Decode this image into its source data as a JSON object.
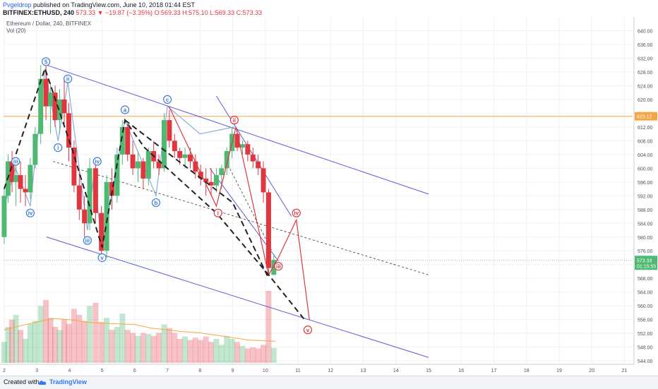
{
  "header": {
    "author": "Pvgeldrop",
    "published": "published on TradingView.com, June 10, 2018 01:44 EST",
    "symbol": "BITFINEX:ETHUSD, 240",
    "change": "573.33 ▼ −19.87 (−3.35%)",
    "ohlc": "O:569.33 H:575.10 L:569.33 C:573.33"
  },
  "legend": {
    "title": "Ethereum / Dollar, 240, BITFINEX",
    "volume": "Vol (20)"
  },
  "footer": {
    "created": "Created with",
    "brand": "TradingView"
  },
  "colors": {
    "up": "#4fb873",
    "down": "#e0363f",
    "channel": "#5b5bd6",
    "wave_blue": "#8aaee0",
    "wave_red": "#e0363f",
    "price_line": "#f7a543"
  },
  "chart_data": {
    "type": "candlestick",
    "ylim": [
      543,
      644
    ],
    "xlim": [
      1.98,
      21.25
    ],
    "y_ticks": [
      544,
      548,
      552,
      556,
      560,
      564,
      568,
      572,
      576,
      580,
      584,
      588,
      592,
      596,
      600,
      604,
      608,
      612,
      616,
      620,
      624,
      628,
      632,
      636,
      640
    ],
    "x_ticks": [
      2,
      3,
      4,
      5,
      6,
      7,
      8,
      9,
      10,
      11,
      12,
      13,
      14,
      15,
      16,
      17,
      18,
      19,
      20,
      21
    ],
    "price_label": "615.12",
    "last_price": "573.33",
    "countdown": "01:15:55",
    "candles": [
      [
        2.0,
        580,
        594,
        578,
        592
      ],
      [
        2.12,
        592,
        604,
        590,
        602
      ],
      [
        2.24,
        602,
        605,
        593,
        596
      ],
      [
        2.36,
        596,
        601,
        589,
        598
      ],
      [
        2.5,
        598,
        602,
        590,
        594
      ],
      [
        2.65,
        594,
        598,
        589,
        593
      ],
      [
        2.8,
        593,
        603,
        591,
        601
      ],
      [
        2.95,
        601,
        612,
        600,
        610
      ],
      [
        3.12,
        610,
        630,
        607,
        626
      ],
      [
        3.28,
        626,
        630,
        614,
        618
      ],
      [
        3.42,
        618,
        625,
        610,
        622
      ],
      [
        3.56,
        622,
        624,
        612,
        614
      ],
      [
        3.7,
        614,
        623,
        610,
        620
      ],
      [
        3.84,
        620,
        626,
        612,
        616
      ],
      [
        3.98,
        616,
        619,
        602,
        606
      ],
      [
        4.14,
        606,
        608,
        593,
        595
      ],
      [
        4.3,
        595,
        599,
        585,
        588
      ],
      [
        4.46,
        588,
        592,
        580,
        584
      ],
      [
        4.62,
        584,
        603,
        582,
        600
      ],
      [
        4.8,
        600,
        602,
        584,
        587
      ],
      [
        4.98,
        587,
        589,
        574,
        576
      ],
      [
        5.14,
        576,
        598,
        574,
        596
      ],
      [
        5.3,
        596,
        600,
        588,
        592
      ],
      [
        5.46,
        592,
        606,
        590,
        604
      ],
      [
        5.62,
        604,
        614,
        601,
        612
      ],
      [
        5.78,
        612,
        613,
        602,
        604
      ],
      [
        5.94,
        604,
        608,
        598,
        600
      ],
      [
        6.1,
        600,
        605,
        596,
        602
      ],
      [
        6.26,
        602,
        603,
        594,
        597
      ],
      [
        6.42,
        597,
        606,
        595,
        605
      ],
      [
        6.58,
        605,
        608,
        600,
        602
      ],
      [
        6.74,
        602,
        604,
        598,
        600
      ],
      [
        6.9,
        600,
        616,
        599,
        614
      ],
      [
        7.06,
        614,
        617,
        606,
        608
      ],
      [
        7.22,
        608,
        610,
        603,
        605
      ],
      [
        7.38,
        605,
        606,
        601,
        603
      ],
      [
        7.54,
        603,
        606,
        600,
        604
      ],
      [
        7.7,
        604,
        606,
        600,
        602
      ],
      [
        7.86,
        602,
        604,
        597,
        599
      ],
      [
        8.02,
        599,
        601,
        595,
        597
      ],
      [
        8.18,
        597,
        600,
        592,
        596
      ],
      [
        8.34,
        596,
        600,
        592,
        595
      ],
      [
        8.5,
        595,
        600,
        593,
        598
      ],
      [
        8.66,
        598,
        601,
        594,
        600
      ],
      [
        8.82,
        600,
        606,
        598,
        605
      ],
      [
        8.98,
        605,
        612,
        603,
        610
      ],
      [
        9.14,
        610,
        611,
        605,
        606
      ],
      [
        9.3,
        606,
        608,
        604,
        607
      ],
      [
        9.46,
        607,
        608,
        602,
        604
      ],
      [
        9.62,
        604,
        606,
        600,
        602
      ],
      [
        9.78,
        602,
        604,
        598,
        600
      ],
      [
        9.94,
        600,
        602,
        590,
        593
      ],
      [
        10.1,
        593,
        594,
        569,
        571
      ],
      [
        10.26,
        569,
        575,
        569,
        573.33
      ]
    ],
    "volume": [
      [
        2.0,
        35,
        1
      ],
      [
        2.12,
        60,
        1
      ],
      [
        2.24,
        72,
        0
      ],
      [
        2.36,
        80,
        1
      ],
      [
        2.5,
        55,
        0
      ],
      [
        2.65,
        40,
        1
      ],
      [
        2.8,
        65,
        1
      ],
      [
        2.95,
        70,
        1
      ],
      [
        3.12,
        95,
        1
      ],
      [
        3.28,
        105,
        0
      ],
      [
        3.42,
        75,
        0
      ],
      [
        3.56,
        60,
        0
      ],
      [
        3.7,
        55,
        1
      ],
      [
        3.84,
        72,
        0
      ],
      [
        3.98,
        65,
        0
      ],
      [
        4.14,
        90,
        0
      ],
      [
        4.3,
        80,
        0
      ],
      [
        4.46,
        70,
        0
      ],
      [
        4.62,
        95,
        1
      ],
      [
        4.8,
        100,
        0
      ],
      [
        4.98,
        68,
        0
      ],
      [
        5.14,
        75,
        1
      ],
      [
        5.3,
        55,
        0
      ],
      [
        5.46,
        60,
        1
      ],
      [
        5.62,
        82,
        1
      ],
      [
        5.78,
        55,
        0
      ],
      [
        5.94,
        50,
        0
      ],
      [
        6.1,
        45,
        1
      ],
      [
        6.26,
        50,
        0
      ],
      [
        6.42,
        48,
        1
      ],
      [
        6.58,
        45,
        0
      ],
      [
        6.74,
        50,
        0
      ],
      [
        6.9,
        64,
        1
      ],
      [
        7.06,
        58,
        0
      ],
      [
        7.22,
        50,
        0
      ],
      [
        7.38,
        40,
        0
      ],
      [
        7.54,
        44,
        1
      ],
      [
        7.7,
        38,
        0
      ],
      [
        7.86,
        42,
        0
      ],
      [
        8.02,
        38,
        0
      ],
      [
        8.18,
        44,
        0
      ],
      [
        8.34,
        35,
        0
      ],
      [
        8.5,
        40,
        1
      ],
      [
        8.66,
        30,
        1
      ],
      [
        8.82,
        45,
        1
      ],
      [
        8.98,
        40,
        1
      ],
      [
        9.14,
        35,
        0
      ],
      [
        9.3,
        28,
        1
      ],
      [
        9.46,
        24,
        0
      ],
      [
        9.62,
        26,
        0
      ],
      [
        9.78,
        24,
        0
      ],
      [
        9.94,
        30,
        0
      ],
      [
        10.1,
        120,
        0
      ],
      [
        10.26,
        25,
        1
      ]
    ],
    "volume_ma": [
      [
        2.0,
        55
      ],
      [
        2.5,
        62
      ],
      [
        3.0,
        68
      ],
      [
        3.5,
        74
      ],
      [
        4.0,
        72
      ],
      [
        4.5,
        68
      ],
      [
        5.0,
        66
      ],
      [
        5.5,
        65
      ],
      [
        6.0,
        64
      ],
      [
        6.5,
        58
      ],
      [
        7.0,
        55
      ],
      [
        7.5,
        52
      ],
      [
        8.0,
        50
      ],
      [
        8.5,
        46
      ],
      [
        9.0,
        42
      ],
      [
        9.5,
        38
      ],
      [
        10.3,
        36
      ]
    ],
    "annotations": {
      "channel_lines": [
        [
          [
            3.3,
            630
          ],
          [
            15.0,
            592.5
          ]
        ],
        [
          [
            3.3,
            580
          ],
          [
            15.0,
            545
          ]
        ],
        [
          [
            8.5,
            621
          ],
          [
            10.8,
            586
          ]
        ],
        [
          [
            8.3,
            600
          ],
          [
            10.4,
            573
          ]
        ]
      ],
      "black_dashed": [
        [
          [
            2.0,
            594
          ],
          [
            3.25,
            629
          ],
          [
            4.1,
            605
          ],
          [
            5.0,
            577
          ],
          [
            5.7,
            614
          ],
          [
            6.3,
            606
          ],
          [
            8.5,
            587
          ],
          [
            10.1,
            569
          ],
          [
            11.2,
            556
          ]
        ],
        [
          [
            5.7,
            614
          ],
          [
            9.0,
            590
          ],
          [
            10.1,
            568
          ]
        ]
      ],
      "dotted_lines": [
        [
          [
            3.5,
            602
          ],
          [
            15.0,
            569
          ]
        ],
        [
          [
            8.8,
            602
          ],
          [
            10.2,
            576
          ]
        ]
      ],
      "blue_wave": [
        [
          2.0,
          589
        ],
        [
          2.35,
          600
        ],
        [
          2.8,
          589
        ],
        [
          3.25,
          629
        ],
        [
          3.65,
          608
        ],
        [
          3.95,
          625
        ],
        [
          4.55,
          582
        ],
        [
          4.75,
          598
        ],
        [
          5.0,
          577
        ],
        [
          5.7,
          614
        ],
        [
          6.65,
          592
        ],
        [
          7.0,
          618
        ],
        [
          8.0,
          610
        ],
        [
          9.05,
          612
        ]
      ],
      "red_wave": [
        [
          7.05,
          618
        ],
        [
          8.5,
          589
        ],
        [
          9.1,
          612
        ],
        [
          10.1,
          569
        ],
        [
          10.4,
          574
        ],
        [
          10.95,
          585
        ],
        [
          11.35,
          556
        ]
      ],
      "labels": [
        {
          "text": "5",
          "x": 3.28,
          "y": 631,
          "c": "blue"
        },
        {
          "text": "ii",
          "x": 3.95,
          "y": 626,
          "c": "blue"
        },
        {
          "text": "iii",
          "x": 2.35,
          "y": 602,
          "c": "blue"
        },
        {
          "text": "iv",
          "x": 2.8,
          "y": 587,
          "c": "blue"
        },
        {
          "text": "i",
          "x": 3.65,
          "y": 606,
          "c": "blue"
        },
        {
          "text": "iv",
          "x": 4.85,
          "y": 602,
          "c": "blue"
        },
        {
          "text": "iii",
          "x": 4.55,
          "y": 579,
          "c": "blue"
        },
        {
          "text": "v",
          "x": 5.0,
          "y": 574,
          "c": "blue"
        },
        {
          "text": "a",
          "x": 5.7,
          "y": 617,
          "c": "blue"
        },
        {
          "text": "c",
          "x": 7.0,
          "y": 620,
          "c": "blue"
        },
        {
          "text": "b",
          "x": 6.65,
          "y": 590,
          "c": "blue"
        },
        {
          "text": "ii",
          "x": 9.05,
          "y": 614,
          "c": "red"
        },
        {
          "text": "i",
          "x": 8.55,
          "y": 587,
          "c": "red"
        },
        {
          "text": "iv",
          "x": 10.95,
          "y": 587,
          "c": "red"
        },
        {
          "text": "iii",
          "x": 10.4,
          "y": 571.5,
          "c": "red"
        },
        {
          "text": "v",
          "x": 11.3,
          "y": 553,
          "c": "red"
        }
      ]
    }
  }
}
